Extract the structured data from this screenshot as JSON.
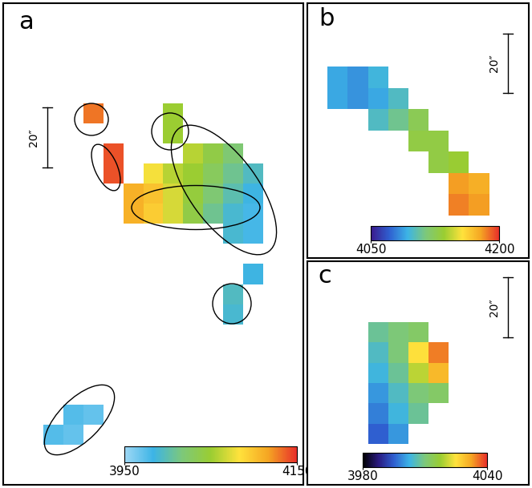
{
  "chart_data": [
    {
      "type": "heatmap",
      "title": "a",
      "scale_bar": "20″",
      "tick_labels": false,
      "cells": [
        [
          null,
          null,
          null,
          null,
          null,
          null,
          null,
          null,
          null,
          null,
          null,
          null,
          null,
          null,
          null
        ],
        [
          null,
          null,
          null,
          null,
          null,
          null,
          null,
          null,
          null,
          null,
          null,
          null,
          null,
          null,
          null
        ],
        [
          null,
          null,
          null,
          null,
          null,
          null,
          null,
          null,
          null,
          null,
          null,
          null,
          null,
          null,
          null
        ],
        [
          null,
          null,
          null,
          null,
          null,
          null,
          null,
          null,
          null,
          null,
          null,
          null,
          null,
          null,
          null
        ],
        [
          null,
          null,
          null,
          null,
          null,
          null,
          null,
          null,
          null,
          null,
          null,
          null,
          null,
          null,
          null
        ],
        [
          null,
          null,
          null,
          null,
          4130,
          null,
          null,
          null,
          4050,
          null,
          null,
          null,
          null,
          null,
          null
        ],
        [
          null,
          null,
          null,
          null,
          null,
          null,
          null,
          null,
          4050,
          null,
          null,
          null,
          null,
          null,
          null
        ],
        [
          null,
          null,
          null,
          null,
          null,
          4140,
          null,
          null,
          null,
          4060,
          4040,
          4020,
          null,
          null,
          null
        ],
        [
          null,
          null,
          null,
          null,
          null,
          4140,
          null,
          4080,
          4060,
          4050,
          4030,
          4010,
          3995,
          null,
          null
        ],
        [
          null,
          null,
          null,
          null,
          null,
          null,
          4110,
          4100,
          4070,
          4045,
          4020,
          4000,
          3985,
          null,
          null
        ],
        [
          null,
          null,
          null,
          null,
          null,
          null,
          4110,
          4095,
          4070,
          4040,
          4010,
          3990,
          3980,
          null,
          null
        ],
        [
          null,
          null,
          null,
          null,
          null,
          null,
          null,
          null,
          null,
          null,
          null,
          3990,
          3980,
          null,
          null
        ],
        [
          null,
          null,
          null,
          null,
          null,
          null,
          null,
          null,
          null,
          null,
          null,
          null,
          null,
          null,
          null
        ],
        [
          null,
          null,
          null,
          null,
          null,
          null,
          null,
          null,
          null,
          null,
          null,
          null,
          3985,
          null,
          null
        ],
        [
          null,
          null,
          null,
          null,
          null,
          null,
          null,
          null,
          null,
          null,
          null,
          3995,
          null,
          null,
          null
        ],
        [
          null,
          null,
          null,
          null,
          null,
          null,
          null,
          null,
          null,
          null,
          null,
          3990,
          null,
          null,
          null
        ],
        [
          null,
          null,
          null,
          null,
          null,
          null,
          null,
          null,
          null,
          null,
          null,
          null,
          null,
          null,
          null
        ],
        [
          null,
          null,
          null,
          null,
          null,
          null,
          null,
          null,
          null,
          null,
          null,
          null,
          null,
          null,
          null
        ],
        [
          null,
          null,
          null,
          null,
          null,
          null,
          null,
          null,
          null,
          null,
          null,
          null,
          null,
          null,
          null
        ],
        [
          null,
          null,
          null,
          null,
          null,
          null,
          null,
          null,
          null,
          null,
          null,
          null,
          null,
          null,
          null
        ],
        [
          null,
          null,
          null,
          3975,
          3970,
          null,
          null,
          null,
          null,
          null,
          null,
          null,
          null,
          null,
          null
        ],
        [
          null,
          null,
          3975,
          3970,
          null,
          null,
          null,
          null,
          null,
          null,
          null,
          null,
          null,
          null,
          null
        ],
        [
          null,
          null,
          null,
          null,
          null,
          null,
          null,
          null,
          null,
          null,
          null,
          null,
          null,
          null,
          null
        ],
        [
          null,
          null,
          null,
          null,
          null,
          null,
          null,
          null,
          null,
          null,
          null,
          null,
          null,
          null,
          null
        ]
      ],
      "colorbar": {
        "range": [
          3950,
          4150
        ],
        "ticks": [
          3950,
          4150
        ]
      }
    },
    {
      "type": "heatmap",
      "title": "b",
      "scale_bar": "20″",
      "tick_labels": false,
      "cells": [
        [
          null,
          null,
          null,
          null,
          null,
          null,
          null,
          null,
          null,
          null,
          null
        ],
        [
          null,
          null,
          null,
          null,
          null,
          null,
          null,
          null,
          null,
          null,
          null
        ],
        [
          null,
          null,
          null,
          null,
          null,
          null,
          null,
          null,
          null,
          null,
          null
        ],
        [
          null,
          4090,
          4085,
          4095,
          null,
          null,
          null,
          null,
          null,
          null,
          null
        ],
        [
          null,
          4090,
          4085,
          4090,
          4100,
          null,
          null,
          null,
          null,
          null,
          null
        ],
        [
          null,
          null,
          null,
          4100,
          4110,
          4125,
          null,
          null,
          null,
          null,
          null
        ],
        [
          null,
          null,
          null,
          null,
          null,
          4130,
          4130,
          null,
          null,
          null,
          null
        ],
        [
          null,
          null,
          null,
          null,
          null,
          null,
          4130,
          4135,
          null,
          null,
          null
        ],
        [
          null,
          null,
          null,
          null,
          null,
          null,
          null,
          4180,
          4175,
          null,
          null
        ],
        [
          null,
          null,
          null,
          null,
          null,
          null,
          null,
          4185,
          4180,
          null,
          null
        ],
        [
          null,
          null,
          null,
          null,
          null,
          null,
          null,
          null,
          null,
          null,
          null
        ],
        [
          null,
          null,
          null,
          null,
          null,
          null,
          null,
          null,
          null,
          null,
          null
        ]
      ],
      "colorbar": {
        "range": [
          4050,
          4200
        ],
        "ticks": [
          4050,
          4200
        ]
      }
    },
    {
      "type": "heatmap",
      "title": "c",
      "scale_bar": "20″",
      "tick_labels": false,
      "cells": [
        [
          null,
          null,
          null,
          null,
          null,
          null,
          null,
          null,
          null,
          null,
          null
        ],
        [
          null,
          null,
          null,
          null,
          null,
          null,
          null,
          null,
          null,
          null,
          null
        ],
        [
          null,
          null,
          null,
          null,
          null,
          null,
          null,
          null,
          null,
          null,
          null
        ],
        [
          null,
          null,
          null,
          4008,
          4010,
          4012,
          null,
          null,
          null,
          null,
          null
        ],
        [
          null,
          null,
          null,
          4005,
          4010,
          4025,
          4035,
          null,
          null,
          null,
          null
        ],
        [
          null,
          null,
          null,
          4003,
          4008,
          4020,
          4030,
          null,
          null,
          null,
          null
        ],
        [
          null,
          null,
          null,
          4000,
          4005,
          4010,
          4012,
          null,
          null,
          null,
          null
        ],
        [
          null,
          null,
          null,
          3998,
          4003,
          4008,
          null,
          null,
          null,
          null,
          null
        ],
        [
          null,
          null,
          null,
          3995,
          4000,
          null,
          null,
          null,
          null,
          null,
          null
        ],
        [
          null,
          null,
          null,
          null,
          null,
          null,
          null,
          null,
          null,
          null,
          null
        ],
        [
          null,
          null,
          null,
          null,
          null,
          null,
          null,
          null,
          null,
          null,
          null
        ]
      ],
      "colorbar": {
        "range": [
          3980,
          4040
        ],
        "ticks": [
          3980,
          4040
        ]
      }
    }
  ]
}
